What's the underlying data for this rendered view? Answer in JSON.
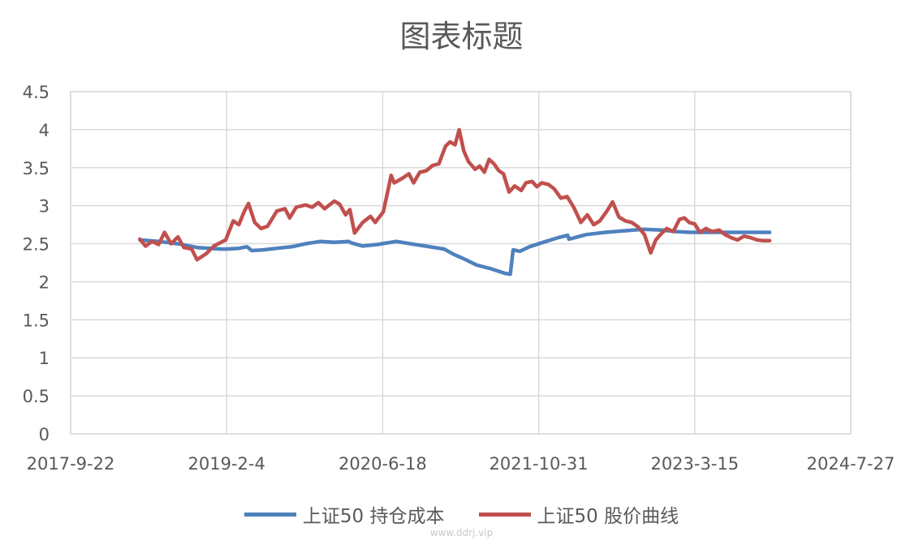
{
  "chart_data": {
    "type": "line",
    "title": "图表标题",
    "xlabel": "",
    "ylabel": "",
    "x_range": [
      "2017-9-22",
      "2024-7-27"
    ],
    "ylim": [
      0,
      4.5
    ],
    "y_ticks": [
      "0",
      "0.5",
      "1",
      "1.5",
      "2",
      "2.5",
      "3",
      "3.5",
      "4",
      "4.5"
    ],
    "x_ticks": [
      "2017-9-22",
      "2019-2-4",
      "2020-6-18",
      "2021-10-31",
      "2023-3-15",
      "2024-7-27"
    ],
    "grid": true,
    "legend_position": "bottom",
    "series": [
      {
        "name": "上证50 持仓成本",
        "color": "#4F81BD",
        "points": [
          [
            "2018-05-02",
            2.55
          ],
          [
            "2018-07-01",
            2.53
          ],
          [
            "2018-09-01",
            2.5
          ],
          [
            "2018-11-01",
            2.45
          ],
          [
            "2019-01-15",
            2.43
          ],
          [
            "2019-02-04",
            2.43
          ],
          [
            "2019-03-15",
            2.44
          ],
          [
            "2019-04-10",
            2.46
          ],
          [
            "2019-04-25",
            2.41
          ],
          [
            "2019-06-01",
            2.42
          ],
          [
            "2019-07-15",
            2.44
          ],
          [
            "2019-09-01",
            2.46
          ],
          [
            "2019-10-15",
            2.5
          ],
          [
            "2019-12-01",
            2.53
          ],
          [
            "2020-01-15",
            2.52
          ],
          [
            "2020-03-01",
            2.53
          ],
          [
            "2020-03-10",
            2.51
          ],
          [
            "2020-04-15",
            2.47
          ],
          [
            "2020-06-01",
            2.49
          ],
          [
            "2020-07-01",
            2.51
          ],
          [
            "2020-08-01",
            2.53
          ],
          [
            "2020-09-15",
            2.5
          ],
          [
            "2020-11-01",
            2.47
          ],
          [
            "2021-01-01",
            2.43
          ],
          [
            "2021-02-01",
            2.36
          ],
          [
            "2021-03-01",
            2.31
          ],
          [
            "2021-04-15",
            2.22
          ],
          [
            "2021-06-01",
            2.17
          ],
          [
            "2021-07-15",
            2.11
          ],
          [
            "2021-08-01",
            2.1
          ],
          [
            "2021-08-10",
            2.42
          ],
          [
            "2021-09-01",
            2.4
          ],
          [
            "2021-10-01",
            2.46
          ],
          [
            "2021-11-15",
            2.52
          ],
          [
            "2022-01-01",
            2.58
          ],
          [
            "2022-02-01",
            2.61
          ],
          [
            "2022-02-05",
            2.56
          ],
          [
            "2022-04-01",
            2.62
          ],
          [
            "2022-06-01",
            2.65
          ],
          [
            "2022-08-01",
            2.67
          ],
          [
            "2022-10-01",
            2.69
          ],
          [
            "2022-12-01",
            2.68
          ],
          [
            "2023-01-15",
            2.66
          ],
          [
            "2023-03-01",
            2.65
          ],
          [
            "2023-06-01",
            2.65
          ],
          [
            "2023-09-01",
            2.65
          ],
          [
            "2023-11-10",
            2.65
          ]
        ]
      },
      {
        "name": "上证50 股价曲线",
        "color": "#C0504D",
        "points": [
          [
            "2018-05-02",
            2.56
          ],
          [
            "2018-05-20",
            2.47
          ],
          [
            "2018-06-10",
            2.53
          ],
          [
            "2018-07-01",
            2.49
          ],
          [
            "2018-07-20",
            2.65
          ],
          [
            "2018-08-10",
            2.5
          ],
          [
            "2018-09-01",
            2.59
          ],
          [
            "2018-09-20",
            2.45
          ],
          [
            "2018-10-15",
            2.43
          ],
          [
            "2018-11-01",
            2.29
          ],
          [
            "2018-12-01",
            2.37
          ],
          [
            "2018-12-25",
            2.47
          ],
          [
            "2019-02-01",
            2.55
          ],
          [
            "2019-02-25",
            2.8
          ],
          [
            "2019-03-15",
            2.75
          ],
          [
            "2019-04-01",
            2.92
          ],
          [
            "2019-04-15",
            3.03
          ],
          [
            "2019-05-05",
            2.78
          ],
          [
            "2019-05-25",
            2.7
          ],
          [
            "2019-06-15",
            2.73
          ],
          [
            "2019-07-15",
            2.93
          ],
          [
            "2019-08-10",
            2.96
          ],
          [
            "2019-08-25",
            2.84
          ],
          [
            "2019-09-15",
            2.98
          ],
          [
            "2019-10-15",
            3.01
          ],
          [
            "2019-11-05",
            2.98
          ],
          [
            "2019-11-25",
            3.04
          ],
          [
            "2019-12-15",
            2.96
          ],
          [
            "2020-01-15",
            3.06
          ],
          [
            "2020-02-01",
            3.02
          ],
          [
            "2020-02-20",
            2.88
          ],
          [
            "2020-03-05",
            2.95
          ],
          [
            "2020-03-20",
            2.64
          ],
          [
            "2020-04-15",
            2.78
          ],
          [
            "2020-05-10",
            2.86
          ],
          [
            "2020-05-25",
            2.78
          ],
          [
            "2020-06-20",
            2.92
          ],
          [
            "2020-07-05",
            3.2
          ],
          [
            "2020-07-15",
            3.4
          ],
          [
            "2020-07-25",
            3.3
          ],
          [
            "2020-08-20",
            3.36
          ],
          [
            "2020-09-10",
            3.42
          ],
          [
            "2020-09-25",
            3.3
          ],
          [
            "2020-10-15",
            3.44
          ],
          [
            "2020-11-05",
            3.46
          ],
          [
            "2020-11-25",
            3.53
          ],
          [
            "2020-12-15",
            3.55
          ],
          [
            "2021-01-05",
            3.78
          ],
          [
            "2021-01-20",
            3.84
          ],
          [
            "2021-02-05",
            3.8
          ],
          [
            "2021-02-18",
            4.0
          ],
          [
            "2021-03-05",
            3.72
          ],
          [
            "2021-03-20",
            3.58
          ],
          [
            "2021-04-10",
            3.48
          ],
          [
            "2021-04-25",
            3.52
          ],
          [
            "2021-05-10",
            3.44
          ],
          [
            "2021-05-25",
            3.61
          ],
          [
            "2021-06-10",
            3.55
          ],
          [
            "2021-06-25",
            3.46
          ],
          [
            "2021-07-10",
            3.42
          ],
          [
            "2021-07-28",
            3.18
          ],
          [
            "2021-08-15",
            3.26
          ],
          [
            "2021-09-05",
            3.2
          ],
          [
            "2021-09-20",
            3.3
          ],
          [
            "2021-10-10",
            3.32
          ],
          [
            "2021-10-25",
            3.25
          ],
          [
            "2021-11-10",
            3.3
          ],
          [
            "2021-12-01",
            3.28
          ],
          [
            "2021-12-20",
            3.22
          ],
          [
            "2022-01-10",
            3.1
          ],
          [
            "2022-01-30",
            3.12
          ],
          [
            "2022-02-20",
            2.98
          ],
          [
            "2022-03-15",
            2.78
          ],
          [
            "2022-04-05",
            2.88
          ],
          [
            "2022-04-25",
            2.75
          ],
          [
            "2022-05-15",
            2.8
          ],
          [
            "2022-06-05",
            2.92
          ],
          [
            "2022-06-25",
            3.05
          ],
          [
            "2022-07-15",
            2.85
          ],
          [
            "2022-08-05",
            2.8
          ],
          [
            "2022-08-25",
            2.78
          ],
          [
            "2022-09-15",
            2.72
          ],
          [
            "2022-10-05",
            2.62
          ],
          [
            "2022-10-25",
            2.38
          ],
          [
            "2022-11-10",
            2.55
          ],
          [
            "2022-11-25",
            2.62
          ],
          [
            "2022-12-15",
            2.7
          ],
          [
            "2023-01-05",
            2.66
          ],
          [
            "2023-01-25",
            2.82
          ],
          [
            "2023-02-10",
            2.84
          ],
          [
            "2023-02-25",
            2.78
          ],
          [
            "2023-03-15",
            2.76
          ],
          [
            "2023-04-01",
            2.65
          ],
          [
            "2023-04-20",
            2.7
          ],
          [
            "2023-05-10",
            2.66
          ],
          [
            "2023-06-01",
            2.68
          ],
          [
            "2023-06-20",
            2.62
          ],
          [
            "2023-07-10",
            2.58
          ],
          [
            "2023-07-30",
            2.55
          ],
          [
            "2023-08-20",
            2.6
          ],
          [
            "2023-09-10",
            2.58
          ],
          [
            "2023-10-01",
            2.55
          ],
          [
            "2023-10-20",
            2.54
          ],
          [
            "2023-11-10",
            2.54
          ]
        ]
      }
    ]
  },
  "watermark": "www.ddrj.vip"
}
